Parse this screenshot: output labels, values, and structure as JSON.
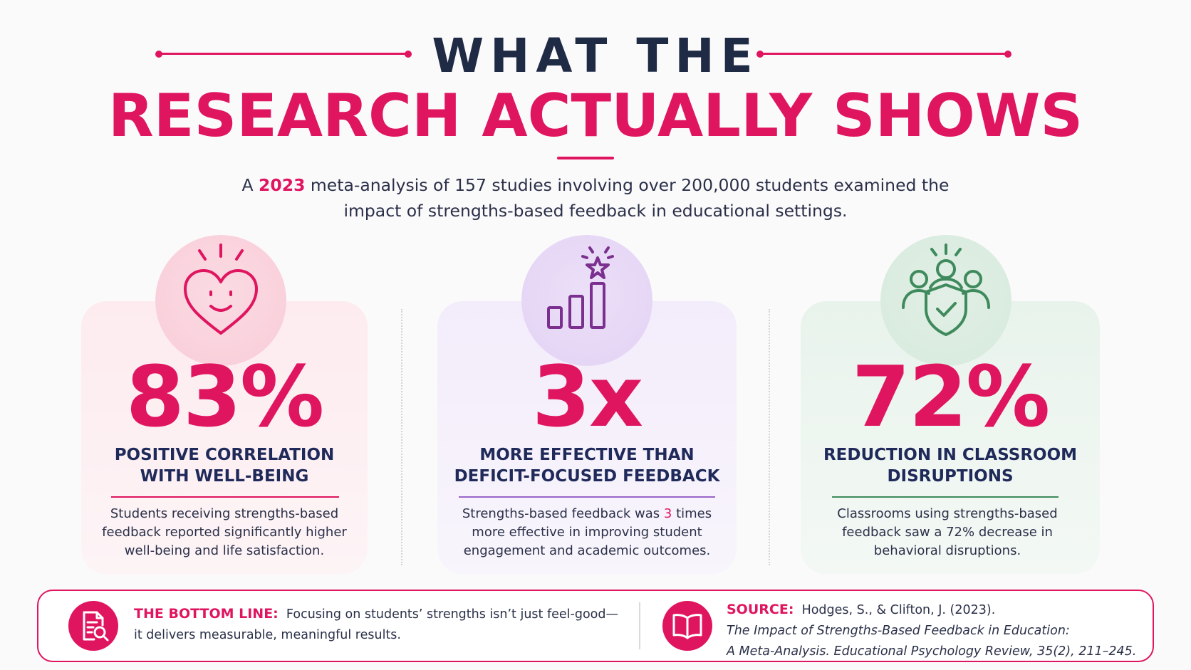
{
  "header": {
    "title_line1": "WHAT THE",
    "title_line2": "RESEARCH ACTUALLY SHOWS",
    "intro_prefix": "A ",
    "intro_year": "2023",
    "intro_line1_rest": " meta-analysis of 157 studies involving over 200,000 students examined the",
    "intro_line2": "impact of strengths-based feedback in educational settings."
  },
  "stats": [
    {
      "icon": "heart-smile-icon",
      "value": "83%",
      "label_line1": "POSITIVE CORRELATION",
      "label_line2": "WITH WELL-BEING",
      "desc_line1": "Students receiving strengths-based",
      "desc_line2": "feedback reported significantly higher",
      "desc_line3": "well-being and life satisfaction."
    },
    {
      "icon": "bar-chart-star-icon",
      "value": "3x",
      "label_line1": "MORE EFFECTIVE THAN",
      "label_line2": "DEFICIT-FOCUSED FEEDBACK",
      "desc_line1_a": "Strengths-based feedback was ",
      "desc_line1_hl": "3",
      "desc_line1_b": " times",
      "desc_line2": "more effective in improving student",
      "desc_line3": "engagement and academic outcomes."
    },
    {
      "icon": "people-shield-check-icon",
      "value": "72%",
      "label_line1": "REDUCTION IN CLASSROOM",
      "label_line2": "DISRUPTIONS",
      "desc_line1": "Classrooms using strengths-based",
      "desc_line2": "feedback saw a 72% decrease in",
      "desc_line3": "behavioral disruptions."
    }
  ],
  "footer": {
    "bottom_line_key": "THE BOTTOM LINE:",
    "bottom_line_text1": "Focusing on students’ strengths isn’t just feel-good—",
    "bottom_line_text2": "it delivers measurable, meaningful results.",
    "source_key": "SOURCE:",
    "source_authors": "Hodges, S., & Clifton, J. (2023).",
    "source_title1": "The Impact of Strengths-Based Feedback in Education:",
    "source_title2": "A Meta-Analysis. Educational Psychology Review, 35(2), 211–245."
  },
  "colors": {
    "accent": "#e0155f",
    "navy": "#1f2a44",
    "purple": "#7b2f8e",
    "green": "#3f8a5c"
  }
}
